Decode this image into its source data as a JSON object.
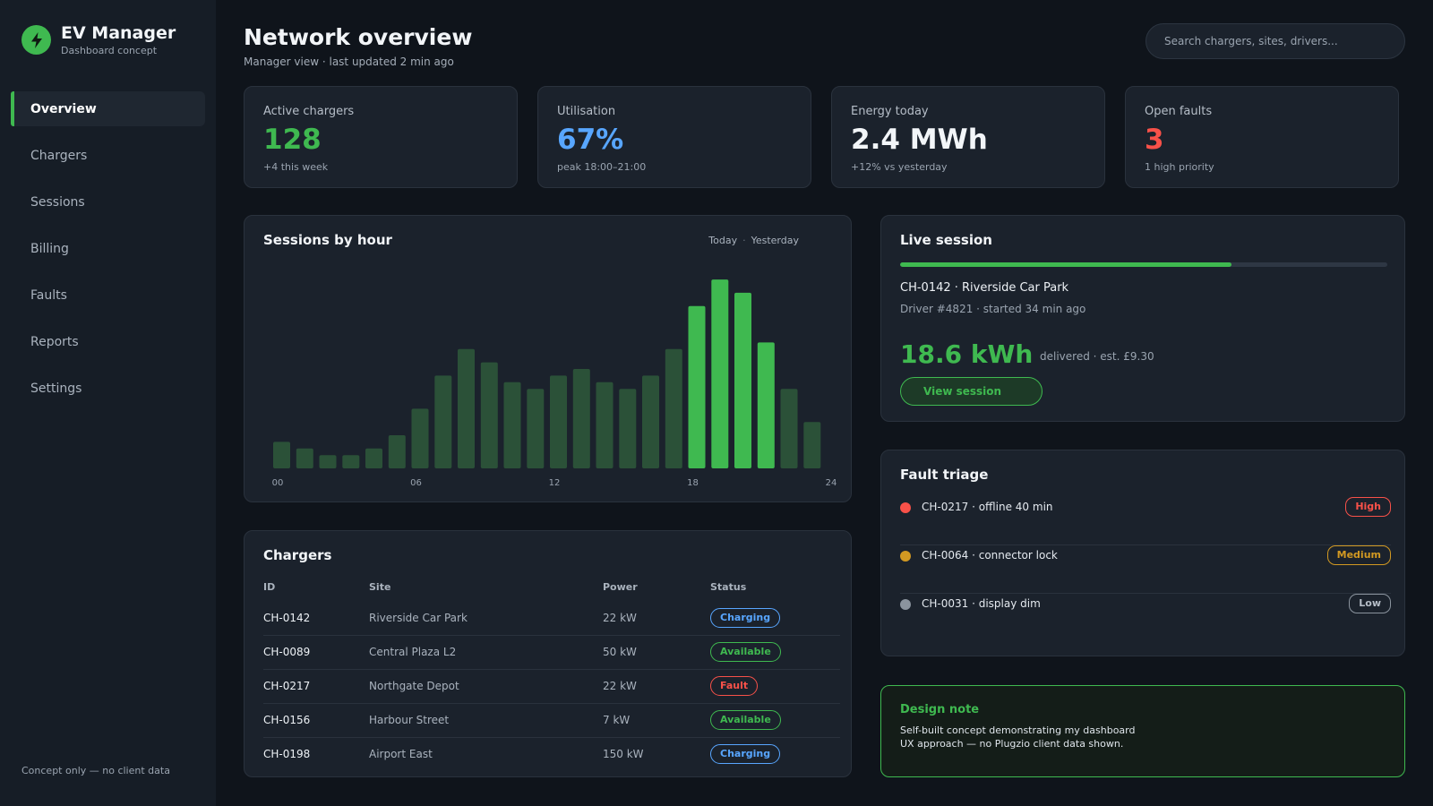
{
  "brand": {
    "title": "EV Manager",
    "subtitle": "Dashboard concept",
    "logo_icon": "lightning-bolt-icon",
    "accent": "#3fb950"
  },
  "sidebar": {
    "items": [
      {
        "label": "Overview",
        "active": true
      },
      {
        "label": "Chargers",
        "active": false
      },
      {
        "label": "Sessions",
        "active": false
      },
      {
        "label": "Billing",
        "active": false
      },
      {
        "label": "Faults",
        "active": false
      },
      {
        "label": "Reports",
        "active": false
      },
      {
        "label": "Settings",
        "active": false
      }
    ],
    "footer": "Concept only — no client data"
  },
  "header": {
    "title": "Network overview",
    "subtitle": "Manager view · last updated 2 min ago",
    "search_placeholder": "Search chargers, sites, drivers..."
  },
  "kpis": [
    {
      "label": "Active chargers",
      "value": "128",
      "sub": "+4 this week",
      "color": "#3fb950"
    },
    {
      "label": "Utilisation",
      "value": "67%",
      "sub": "peak 18:00–21:00",
      "color": "#58a6ff"
    },
    {
      "label": "Energy today",
      "value": "2.4 MWh",
      "sub": "+12% vs yesterday",
      "color": "#f2f5f8"
    },
    {
      "label": "Open faults",
      "value": "3",
      "sub": "1 high priority",
      "color": "#f85149"
    }
  ],
  "sessions_chart": {
    "title": "Sessions by hour",
    "legend": {
      "today": "Today",
      "separator": "·",
      "yesterday": "Yesterday"
    }
  },
  "chart_data": {
    "type": "bar",
    "categories": [
      "00",
      "01",
      "02",
      "03",
      "04",
      "05",
      "06",
      "07",
      "08",
      "09",
      "10",
      "11",
      "12",
      "13",
      "14",
      "15",
      "16",
      "17",
      "18",
      "19",
      "20",
      "21",
      "22",
      "23"
    ],
    "values": [
      8,
      6,
      4,
      4,
      6,
      10,
      18,
      28,
      36,
      32,
      26,
      24,
      28,
      30,
      26,
      24,
      28,
      36,
      49,
      57,
      53,
      38,
      24,
      14
    ],
    "highlight_color": "#3fb950",
    "base_color": "#2b5138",
    "highlight_categories": [
      "18",
      "19",
      "20",
      "21"
    ],
    "tick_labels": [
      "00",
      "06",
      "12",
      "18",
      "24"
    ],
    "ylim": [
      0,
      60
    ],
    "grid": false
  },
  "live_session": {
    "title": "Live session",
    "progress": 0.68,
    "charger": "CH-0142 · Riverside Car Park",
    "driver": "Driver #4821 · started 34 min ago",
    "energy": "18.6 kWh",
    "delivered": "delivered · est. £9.30",
    "button": "View session"
  },
  "faults": {
    "title": "Fault triage",
    "items": [
      {
        "text": "CH-0217 · offline 40 min",
        "severity": "High",
        "color": "#f85149"
      },
      {
        "text": "CH-0064 · connector lock",
        "severity": "Medium",
        "color": "#d29922"
      },
      {
        "text": "CH-0031 · display dim",
        "severity": "Low",
        "color": "#8b949e"
      }
    ]
  },
  "chargers": {
    "title": "Chargers",
    "columns": [
      "ID",
      "Site",
      "Power",
      "Status"
    ],
    "rows": [
      {
        "id": "CH-0142",
        "site": "Riverside Car Park",
        "power": "22 kW",
        "status": "Charging"
      },
      {
        "id": "CH-0089",
        "site": "Central Plaza L2",
        "power": "50 kW",
        "status": "Available"
      },
      {
        "id": "CH-0217",
        "site": "Northgate Depot",
        "power": "22 kW",
        "status": "Fault"
      },
      {
        "id": "CH-0156",
        "site": "Harbour Street",
        "power": "7 kW",
        "status": "Available"
      },
      {
        "id": "CH-0198",
        "site": "Airport East",
        "power": "150 kW",
        "status": "Charging"
      }
    ],
    "status_colors": {
      "Charging": "#58a6ff",
      "Available": "#3fb950",
      "Fault": "#f85149"
    }
  },
  "design_note": {
    "title": "Design note",
    "body": "Self-built concept demonstrating my dashboard UX approach — no Plugzio client data shown."
  }
}
